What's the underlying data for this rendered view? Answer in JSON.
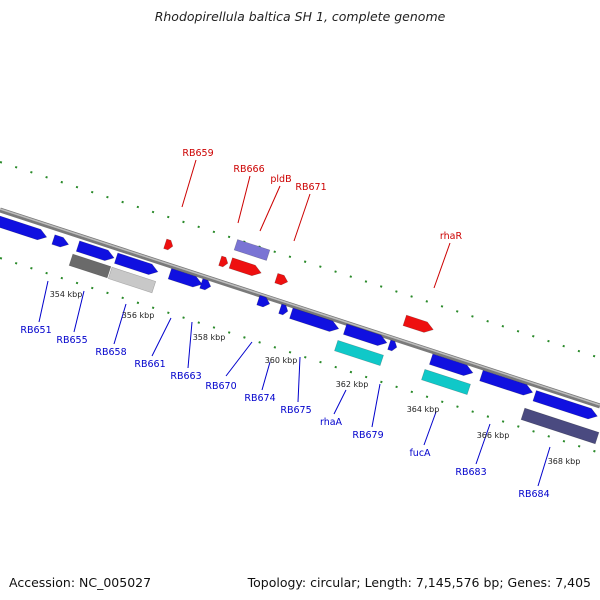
{
  "title": "Rhodopirellula baltica SH 1, complete genome",
  "footer": {
    "accession": "Accession: NC_005027",
    "topology": "Topology: circular; Length: 7,145,576 bp; Genes: 7,405"
  },
  "colors": {
    "forward_label": "#cc0000",
    "reverse_label": "#0000cc",
    "backbone": "#888888",
    "ticks": "#228822",
    "blue_gene": "#1010e0",
    "red_gene": "#ee1010",
    "cyan_gene": "#10c8c8",
    "purple_gene": "#7a74d4"
  },
  "scale_labels": [
    "354 kbp",
    "356 kbp",
    "358 kbp",
    "360 kbp",
    "362 kbp",
    "364 kbp",
    "366 kbp",
    "368 kbp"
  ],
  "forward_genes": [
    "RB659",
    "RB666",
    "pldB",
    "RB671",
    "rhaR"
  ],
  "reverse_genes": [
    "RB651",
    "RB655",
    "RB658",
    "RB661",
    "RB663",
    "RB670",
    "RB674",
    "RB675",
    "rhaA",
    "RB679",
    "fucA",
    "RB683",
    "RB684"
  ]
}
